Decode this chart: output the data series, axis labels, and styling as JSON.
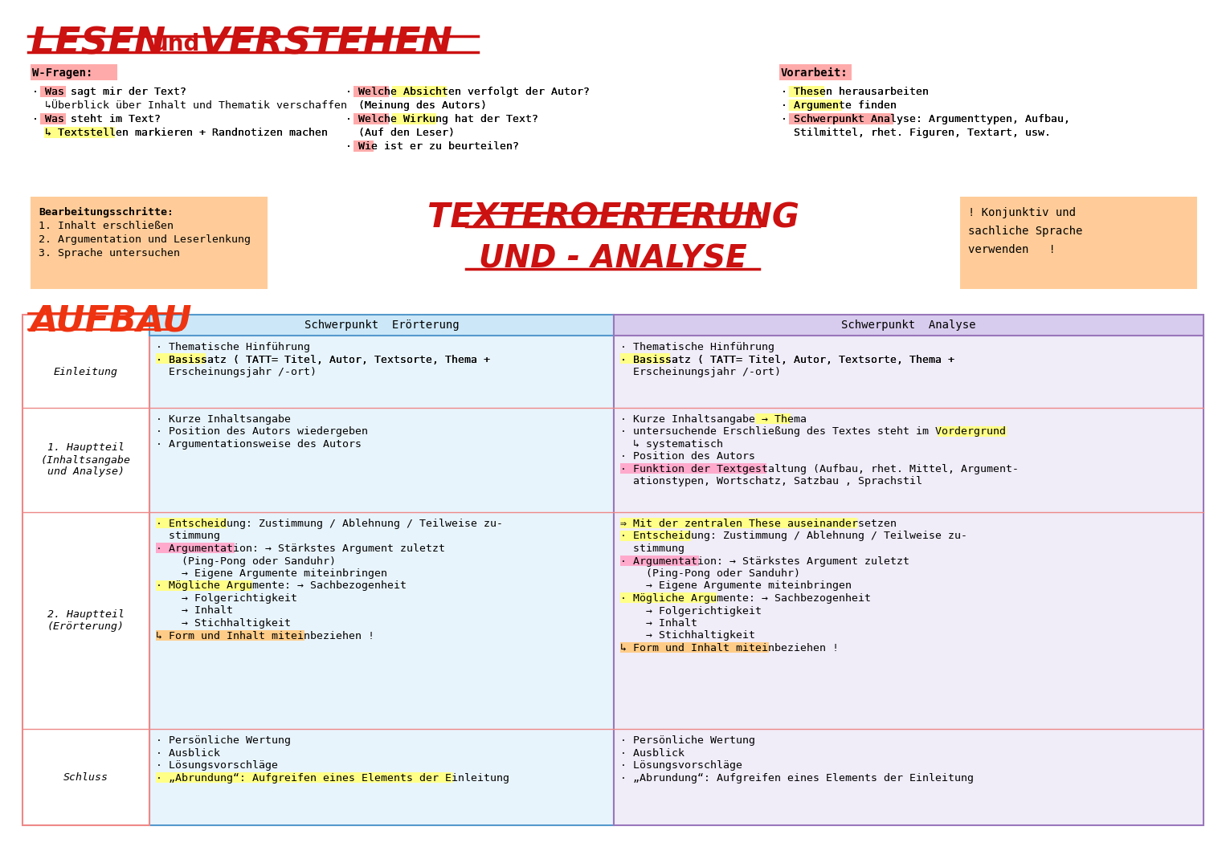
{
  "bg_color": "#ffffff",
  "w_fragen_label": "W-Fragen:",
  "w_fragen_items": [
    "· Was sagt mir der Text?",
    "  ↳Überblick über Inhalt und Thematik verschaffen",
    "· Was steht im Text?",
    "  ↳ Textstellen markieren + Randnotizen machen"
  ],
  "w_fragen_mid": [
    "· Welche Absichten verfolgt der Autor?",
    "  (Meinung des Autors)",
    "· Welche Wirkung hat der Text?",
    "  (Auf den Leser)",
    "· Wie ist er zu beurteilen?"
  ],
  "vorarbeit_label": "Vorarbeit:",
  "vorarbeit_items": [
    "· Thesen herausarbeiten",
    "· Argumente finden",
    "· Schwerpunkt Analyse: Argumenttypen, Aufbau,",
    "  Stilmittel, rhet. Figuren, Textart, usw."
  ],
  "bearb_label": "Bearbeitungsschritte:",
  "bearb_items": [
    "1. Inhalt erschließen",
    "2. Argumentation und Leserlenkung",
    "3. Sprache untersuchen"
  ],
  "konj_text": "! Konjunktiv und\nsachliche Sprache\nverwenden   !",
  "table_col1_header": "Schwerpunkt  Erörterung",
  "table_col2_header": "Schwerpunkt  Analyse",
  "table_rows": [
    "Einleitung",
    "1. Hauptteil\n(Inhaltsangabe\nund Analyse)",
    "2. Hauptteil\n(Erörterung)",
    "Schluss"
  ],
  "col1_row1": [
    "· Thematische Hinführung",
    "· Basissatz ( TATT= Titel, Autor, Textsorte, Thema +",
    "  Erscheinungsjahr /-ort)"
  ],
  "col1_row2": [
    "· Kurze Inhaltsangabe",
    "· Position des Autors wiedergeben",
    "· Argumentationsweise des Autors"
  ],
  "col1_row3": [
    "· Entscheidung: Zustimmung / Ablehnung / Teilweise zu-",
    "  stimmung",
    "· Argumentation: → Stärkstes Argument zuletzt",
    "    (Ping-Pong oder Sanduhr)",
    "    → Eigene Argumente miteinbringen",
    "· Mögliche Argumente: → Sachbezogenheit",
    "    → Folgerichtigkeit",
    "    → Inhalt",
    "    → Stichhaltigkeit",
    "↳ Form und Inhalt miteinbeziehen !"
  ],
  "col1_row4": [
    "· Persönliche Wertung",
    "· Ausblick",
    "· Lösungsvorschläge",
    "· „Abrundung“: Aufgreifen eines Elements der Einleitung"
  ],
  "col2_row1": [
    "· Thematische Hinführung",
    "· Basissatz ( TATT= Titel, Autor, Textsorte, Thema +",
    "  Erscheinungsjahr /-ort)"
  ],
  "col2_row2": [
    "· Kurze Inhaltsangabe → Thema",
    "· untersuchende Erschließung des Textes steht im Vordergrund",
    "  ↳ systematisch",
    "· Position des Autors",
    "· Funktion der Textgestaltung (Aufbau, rhet. Mittel, Argument-",
    "  ationstypen, Wortschatz, Satzbau , Sprachstil"
  ],
  "col2_row3": [
    "⇒ Mit der zentralen These auseinandersetzen",
    "· Entscheidung: Zustimmung / Ablehnung / Teilweise zu-",
    "  stimmung",
    "· Argumentation: → Stärkstes Argument zuletzt",
    "    (Ping-Pong oder Sanduhr)",
    "    → Eigene Argumente miteinbringen",
    "· Mögliche Argumente: → Sachbezogenheit",
    "    → Folgerichtigkeit",
    "    → Inhalt",
    "    → Stichhaltigkeit",
    "↳ Form und Inhalt miteinbeziehen !"
  ],
  "col2_row4": [
    "· Persönliche Wertung",
    "· Ausblick",
    "· Lösungsvorschläge",
    "· „Abrundung“: Aufgreifen eines Elements der Einleitung"
  ]
}
